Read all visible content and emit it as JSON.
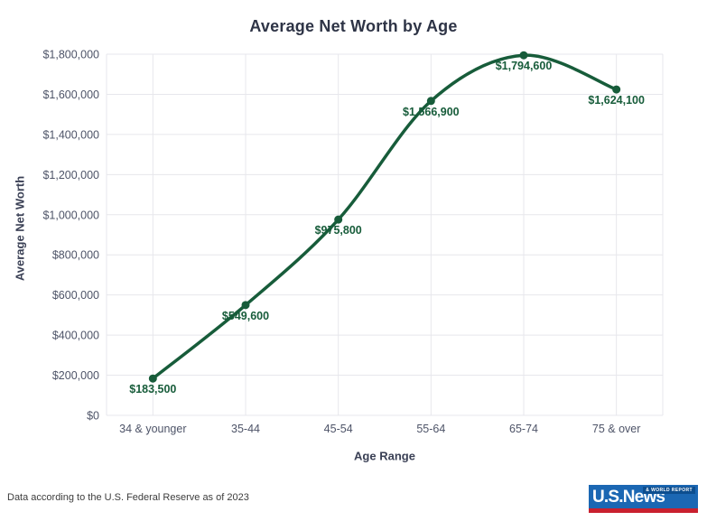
{
  "chart_data": {
    "type": "line",
    "title": "Average Net Worth by Age",
    "xlabel": "Age Range",
    "ylabel": "Average Net Worth",
    "categories": [
      "34 & younger",
      "35-44",
      "45-54",
      "55-64",
      "65-74",
      "75 & over"
    ],
    "values": [
      183500,
      549600,
      975800,
      1566900,
      1794600,
      1624100
    ],
    "point_labels": [
      "$183,500",
      "$549,600",
      "$975,800",
      "$1,566,900",
      "$1,794,600",
      "$1,624,100"
    ],
    "y_ticks": [
      0,
      200000,
      400000,
      600000,
      800000,
      1000000,
      1200000,
      1400000,
      1600000,
      1800000
    ],
    "y_tick_labels": [
      "$0",
      "$200,000",
      "$400,000",
      "$600,000",
      "$800,000",
      "$1,000,000",
      "$1,200,000",
      "$1,400,000",
      "$1,600,000",
      "$1,800,000"
    ],
    "ylim": [
      0,
      1800000
    ],
    "grid": true,
    "legend": false,
    "line_color": "#175C3A",
    "grid_color": "#E7E7EC",
    "tick_label_color": "#4E5468"
  },
  "footer": {
    "source": "Data according to the U.S. Federal Reserve as of 2023"
  },
  "logo": {
    "main": "U.S.News",
    "badge": "& WORLD REPORT",
    "blue": "#1B67B3",
    "dark_blue": "#0D4E8F",
    "red": "#C9202E"
  }
}
